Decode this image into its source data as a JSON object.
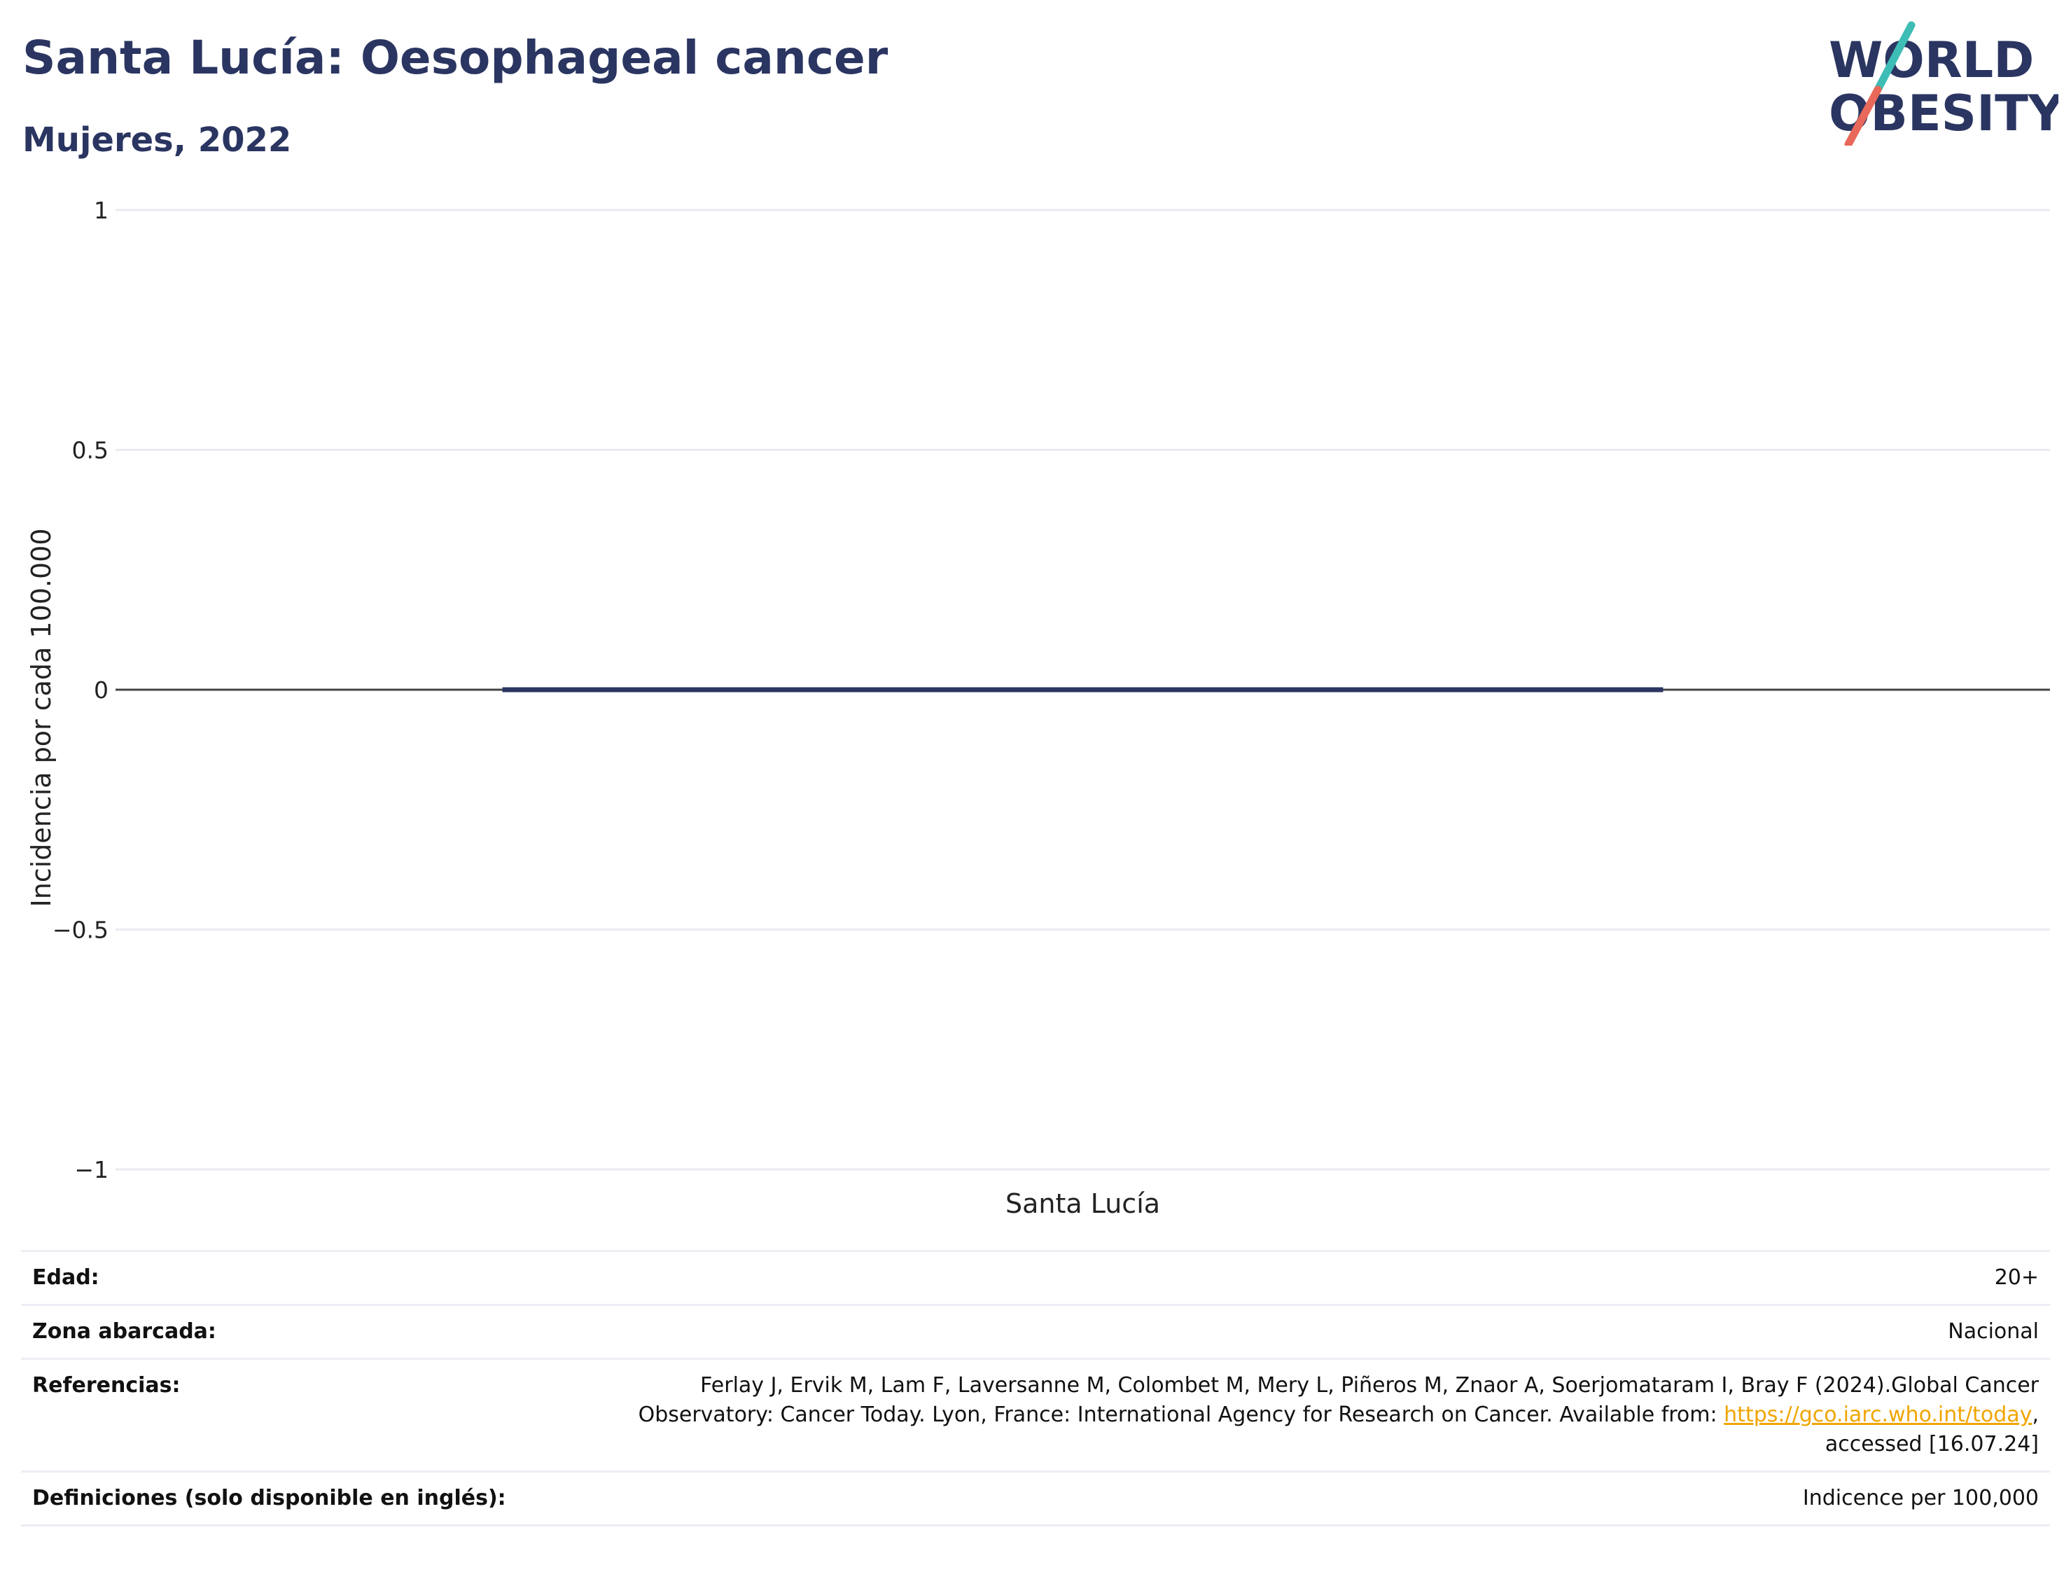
{
  "header": {
    "title": "Santa Lucía: Oesophageal cancer",
    "subtitle": "Mujeres, 2022"
  },
  "logo": {
    "line1": "WORLD",
    "line2": "OBESITY",
    "colors": {
      "text": "#2b3561",
      "slash_top": "#3dbdb5",
      "slash_bottom": "#e8685a"
    }
  },
  "chart_data": {
    "type": "bar",
    "categories": [
      "Santa Lucía"
    ],
    "series": [
      {
        "values": [
          0
        ]
      }
    ],
    "ylabel": "Incidencia por cada 100.000",
    "xlabel": "",
    "ylim": [
      -1,
      1
    ],
    "yticks": [
      1,
      0.5,
      0,
      -0.5,
      -1
    ],
    "ytick_labels": [
      "1",
      "0.5",
      "0",
      "−0.5",
      "−1"
    ],
    "grid": true,
    "legend": "none",
    "bar_color": "#2b3561",
    "zero_line_color": "#444444"
  },
  "info": {
    "rows": [
      {
        "key": "Edad:",
        "value": "20+"
      },
      {
        "key": "Zona abarcada:",
        "value": "Nacional"
      },
      {
        "key": "Referencias:",
        "value_before": "Ferlay J, Ervik M, Lam F, Laversanne M, Colombet M, Mery L, Piñeros M, Znaor A, Soerjomataram I, Bray F (2024).Global Cancer Observatory: Cancer Today. Lyon, France: International Agency for Research on Cancer. Available from: ",
        "link": "https://gco.iarc.who.int/today",
        "value_after": ", accessed [16.07.24]"
      },
      {
        "key": "Definiciones (solo disponible en inglés):",
        "value": "Indicence per 100,000"
      }
    ]
  }
}
